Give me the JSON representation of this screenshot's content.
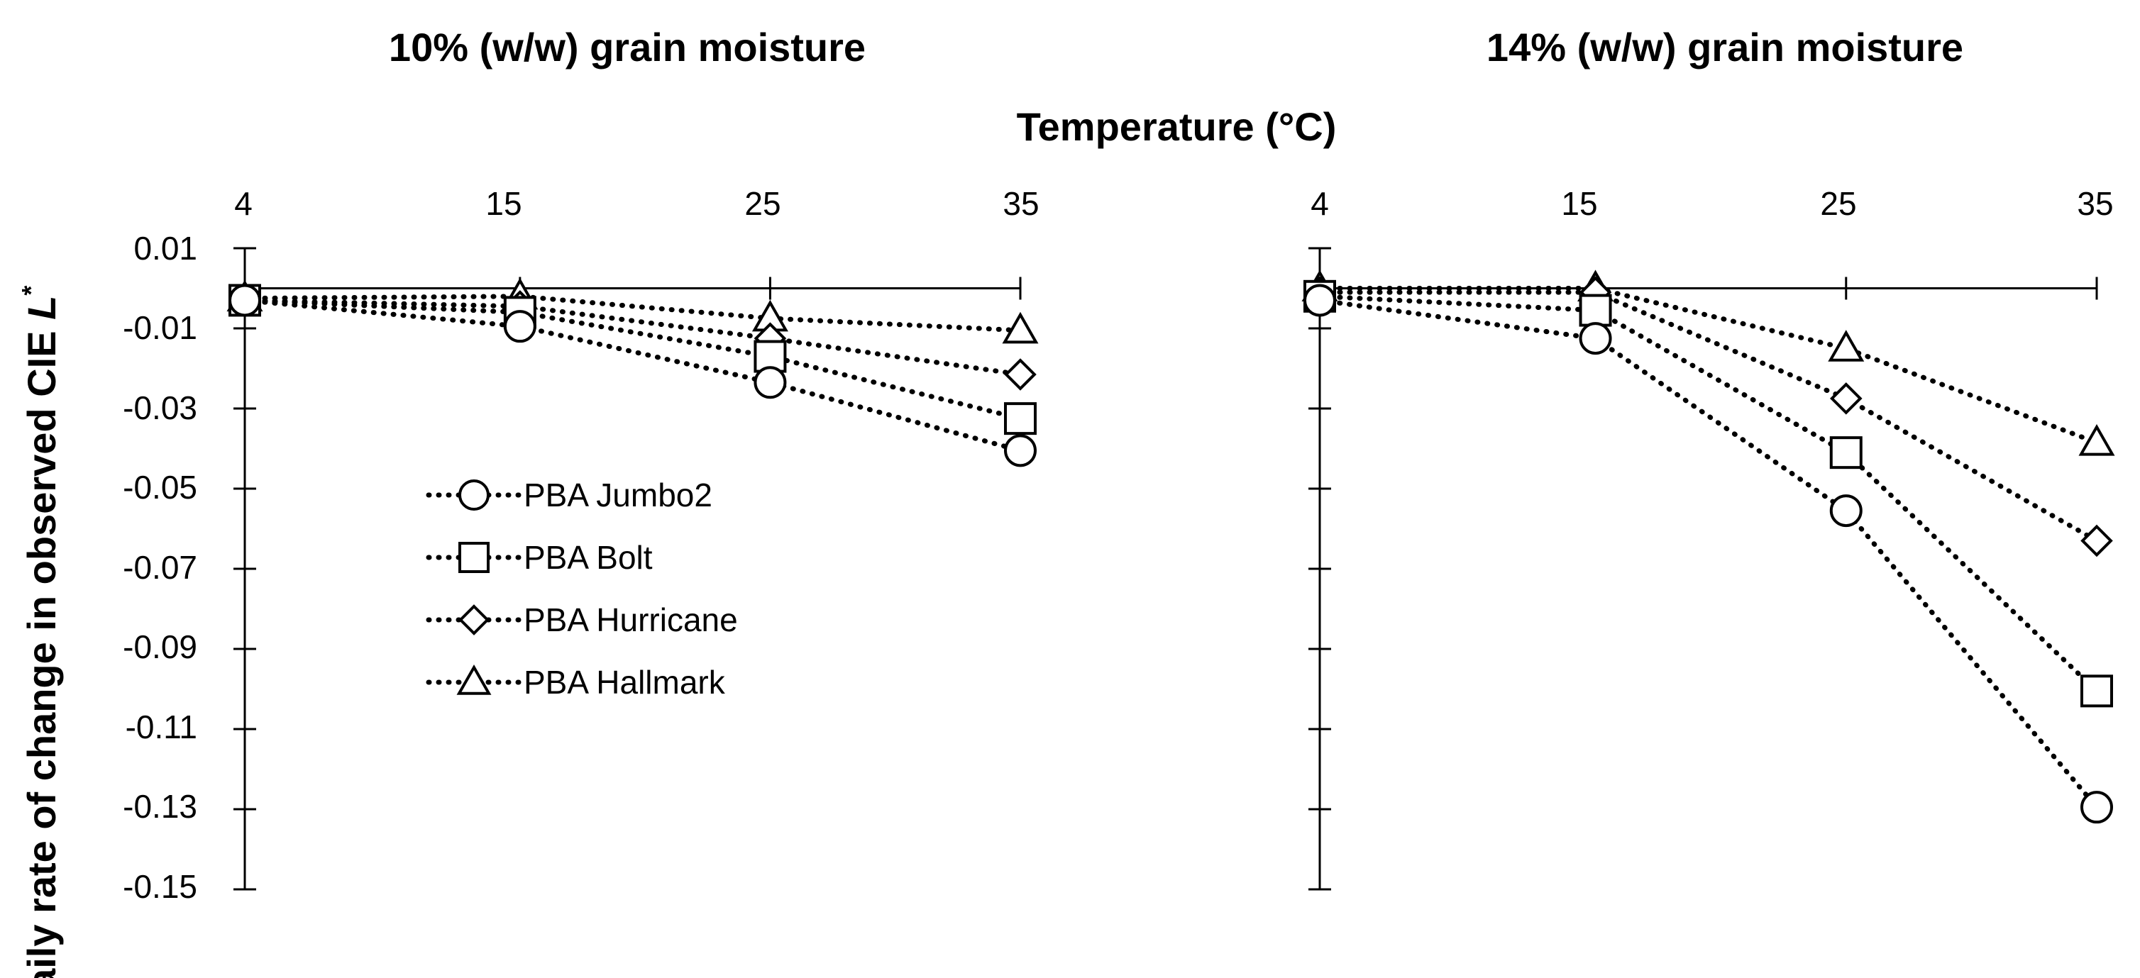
{
  "chart_data": {
    "type": "line",
    "shared_axis_title": "Temperature (°C)",
    "ylabel_main": "Daily rate of change in observed CIE ",
    "ylabel_symbol": "L",
    "ylabel_superscript": "*",
    "x_values": [
      4,
      15,
      25,
      35
    ],
    "x_tick_labels": [
      "4",
      "15",
      "25",
      "35"
    ],
    "ylim": [
      -0.15,
      0.01
    ],
    "y_ticks": [
      0.01,
      -0.01,
      -0.03,
      -0.05,
      -0.07,
      -0.09,
      -0.11,
      -0.13,
      -0.15
    ],
    "y_tick_labels": [
      "0.01",
      "-0.01",
      "-0.03",
      "-0.05",
      "-0.07",
      "-0.09",
      "-0.11",
      "-0.13",
      "-0.15"
    ],
    "legend": [
      {
        "name": "PBA Jumbo2",
        "marker": "circle"
      },
      {
        "name": "PBA Bolt",
        "marker": "square"
      },
      {
        "name": "PBA Hurricane",
        "marker": "diamond"
      },
      {
        "name": "PBA Hallmark",
        "marker": "triangle"
      }
    ],
    "panels": [
      {
        "title": "10% (w/w) grain moisture",
        "series": [
          {
            "name": "PBA Jumbo2",
            "marker": "circle",
            "values": [
              -0.003,
              -0.0095,
              -0.0235,
              -0.0405
            ]
          },
          {
            "name": "PBA Bolt",
            "marker": "square",
            "values": [
              -0.003,
              -0.006,
              -0.017,
              -0.0325
            ]
          },
          {
            "name": "PBA Hurricane",
            "marker": "diamond",
            "values": [
              -0.003,
              -0.0045,
              -0.0125,
              -0.0215
            ]
          },
          {
            "name": "PBA Hallmark",
            "marker": "triangle",
            "values": [
              -0.0025,
              -0.002,
              -0.0075,
              -0.0105
            ]
          }
        ]
      },
      {
        "title": "14% (w/w) grain moisture",
        "series": [
          {
            "name": "PBA Jumbo2",
            "marker": "circle",
            "values": [
              -0.003,
              -0.0125,
              -0.0555,
              -0.1295
            ]
          },
          {
            "name": "PBA Bolt",
            "marker": "square",
            "values": [
              -0.002,
              -0.0055,
              -0.041,
              -0.1005
            ]
          },
          {
            "name": "PBA Hurricane",
            "marker": "diamond",
            "values": [
              -0.001,
              -0.001,
              -0.0275,
              -0.063
            ]
          },
          {
            "name": "PBA Hallmark",
            "marker": "triangle",
            "values": [
              0.0,
              0.0,
              -0.015,
              -0.0385
            ]
          }
        ]
      }
    ]
  }
}
